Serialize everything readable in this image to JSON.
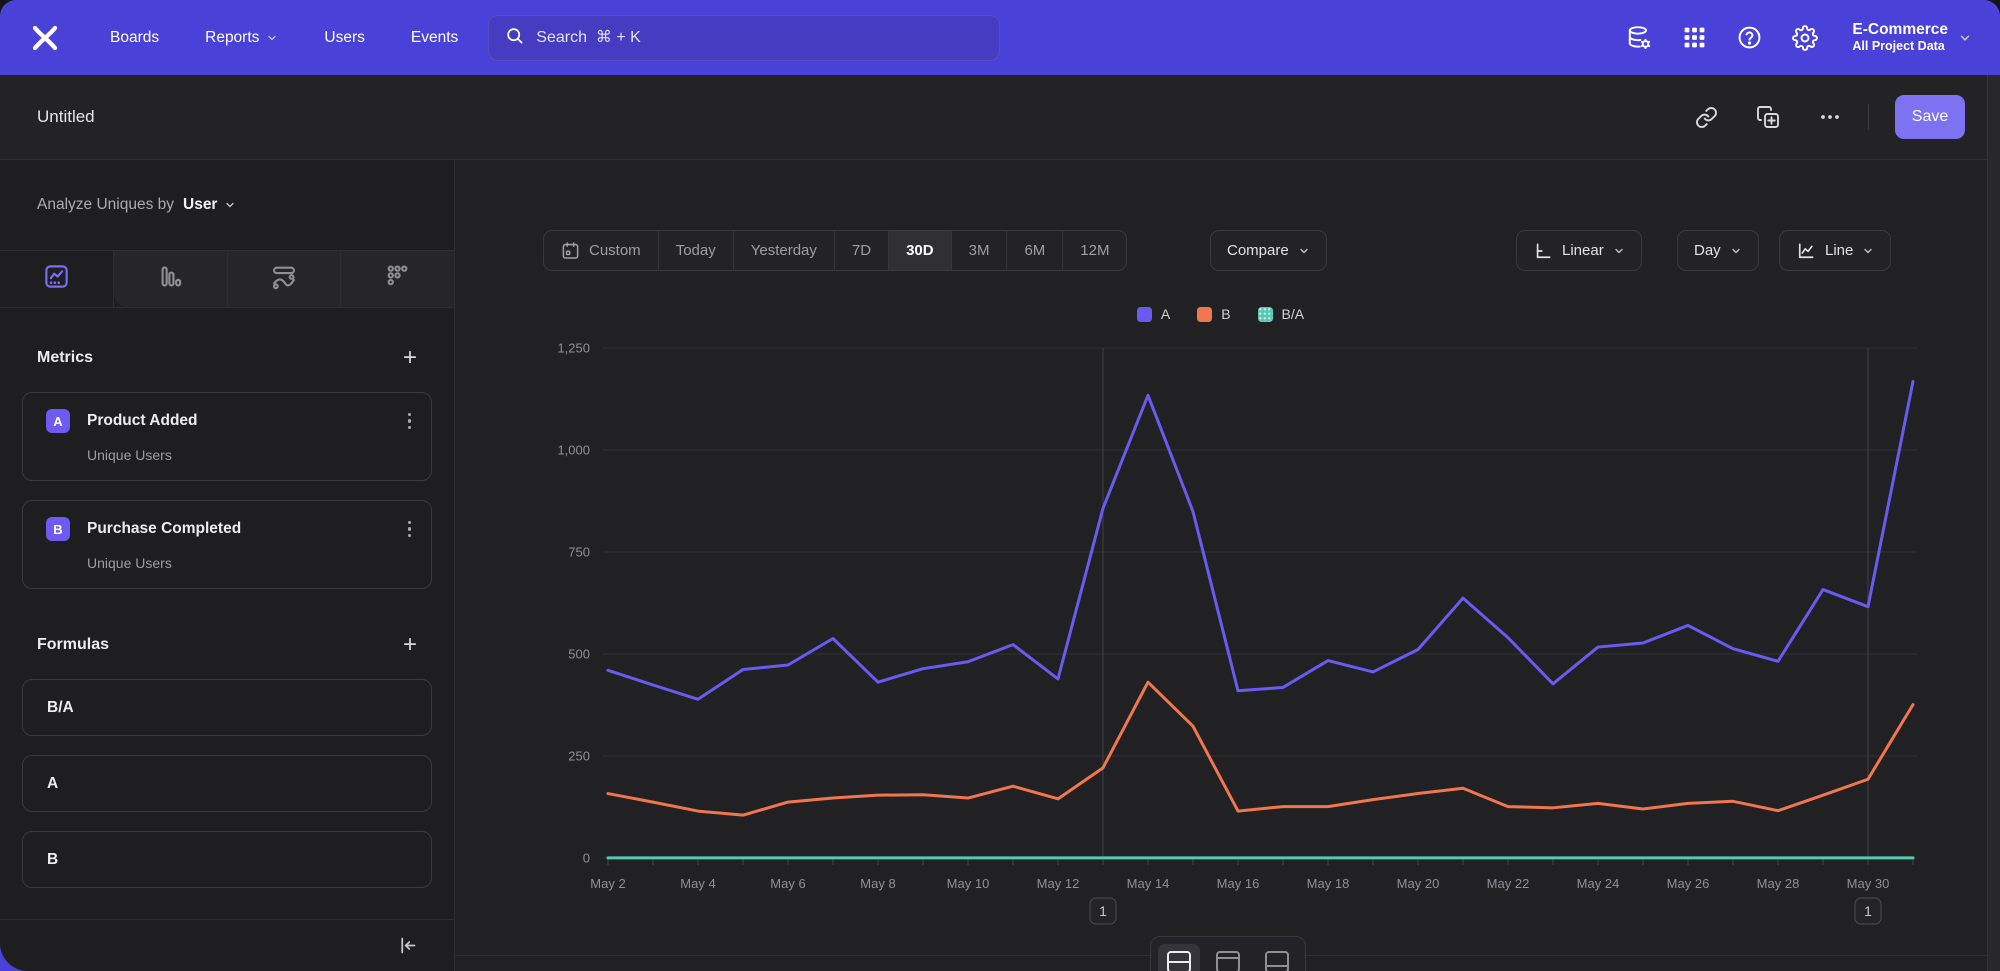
{
  "navbar": {
    "items": [
      "Boards",
      "Reports",
      "Users",
      "Events"
    ],
    "search_placeholder": "Search  ⌘ + K",
    "project_name": "E-Commerce",
    "project_scope": "All Project Data"
  },
  "report_bar": {
    "title": "Untitled",
    "save_label": "Save"
  },
  "sidebar": {
    "analyze_prefix": "Analyze Uniques by",
    "analyze_value": "User",
    "metrics_title": "Metrics",
    "metrics": [
      {
        "letter": "A",
        "name": "Product Added",
        "measure": "Unique Users"
      },
      {
        "letter": "B",
        "name": "Purchase Completed",
        "measure": "Unique Users"
      }
    ],
    "formulas_title": "Formulas",
    "formulas": [
      {
        "label": "B/A"
      },
      {
        "label": "A"
      },
      {
        "label": "B"
      }
    ]
  },
  "controls": {
    "ranges": [
      "Custom",
      "Today",
      "Yesterday",
      "7D",
      "30D",
      "3M",
      "6M",
      "12M"
    ],
    "selected_range": "30D",
    "compare": "Compare",
    "scale": "Linear",
    "interval": "Day",
    "chart_type": "Line"
  },
  "icons": {
    "nav": [
      "data-pipelines-icon",
      "apps-grid-icon",
      "help-icon",
      "settings-gear-icon"
    ],
    "report": [
      "link-icon",
      "duplicate-icon",
      "more-ellipsis-icon"
    ],
    "chart_tabs": [
      "insights-icon",
      "bar-chart-icon",
      "flows-icon",
      "retention-icon"
    ],
    "view_toggles": [
      "split-view-icon",
      "chart-top-view-icon",
      "chart-bottom-view-icon"
    ]
  },
  "colors": {
    "navbar": "#4A41D9",
    "save_button": "#7C72F2",
    "series_a": "#6C59F0",
    "series_b": "#F0764E",
    "series_ba": "#57C8B2"
  },
  "chart_data": {
    "type": "line",
    "title": "",
    "xlabel": "",
    "ylabel": "",
    "ylim": [
      0,
      1250
    ],
    "yticks": [
      0,
      250,
      500,
      750,
      1000,
      1250
    ],
    "grid": true,
    "legend_position": "top-center",
    "xtick_every": 2,
    "x": [
      "May 2",
      "May 3",
      "May 4",
      "May 5",
      "May 6",
      "May 7",
      "May 8",
      "May 9",
      "May 10",
      "May 11",
      "May 12",
      "May 13",
      "May 14",
      "May 15",
      "May 16",
      "May 17",
      "May 18",
      "May 19",
      "May 20",
      "May 21",
      "May 22",
      "May 23",
      "May 24",
      "May 25",
      "May 26",
      "May 27",
      "May 28",
      "May 29",
      "May 30",
      "May 31"
    ],
    "series": [
      {
        "name": "A",
        "color": "#6C59F0",
        "values": [
          460,
          424,
          389,
          462,
          473,
          538,
          431,
          464,
          481,
          523,
          439,
          857,
          1134,
          849,
          410,
          418,
          484,
          456,
          511,
          637,
          540,
          427,
          517,
          527,
          570,
          513,
          482,
          658,
          616,
          1168
        ]
      },
      {
        "name": "B",
        "color": "#F0764E",
        "values": [
          158,
          137,
          115,
          105,
          137,
          147,
          154,
          155,
          147,
          176,
          145,
          221,
          431,
          323,
          115,
          126,
          126,
          143,
          158,
          171,
          126,
          123,
          134,
          120,
          134,
          139,
          116,
          154,
          193,
          376
        ]
      },
      {
        "name": "B/A",
        "color": "#57C8B2",
        "values": [
          0.34,
          0.32,
          0.3,
          0.23,
          0.29,
          0.27,
          0.36,
          0.33,
          0.31,
          0.34,
          0.33,
          0.26,
          0.38,
          0.38,
          0.28,
          0.3,
          0.26,
          0.31,
          0.31,
          0.27,
          0.23,
          0.29,
          0.26,
          0.23,
          0.24,
          0.27,
          0.24,
          0.23,
          0.31,
          0.32
        ]
      }
    ],
    "annotations": [
      {
        "label": "1",
        "x_index": 11,
        "x": "May 13"
      },
      {
        "label": "1",
        "x_index": 28,
        "x": "May 30"
      }
    ]
  }
}
